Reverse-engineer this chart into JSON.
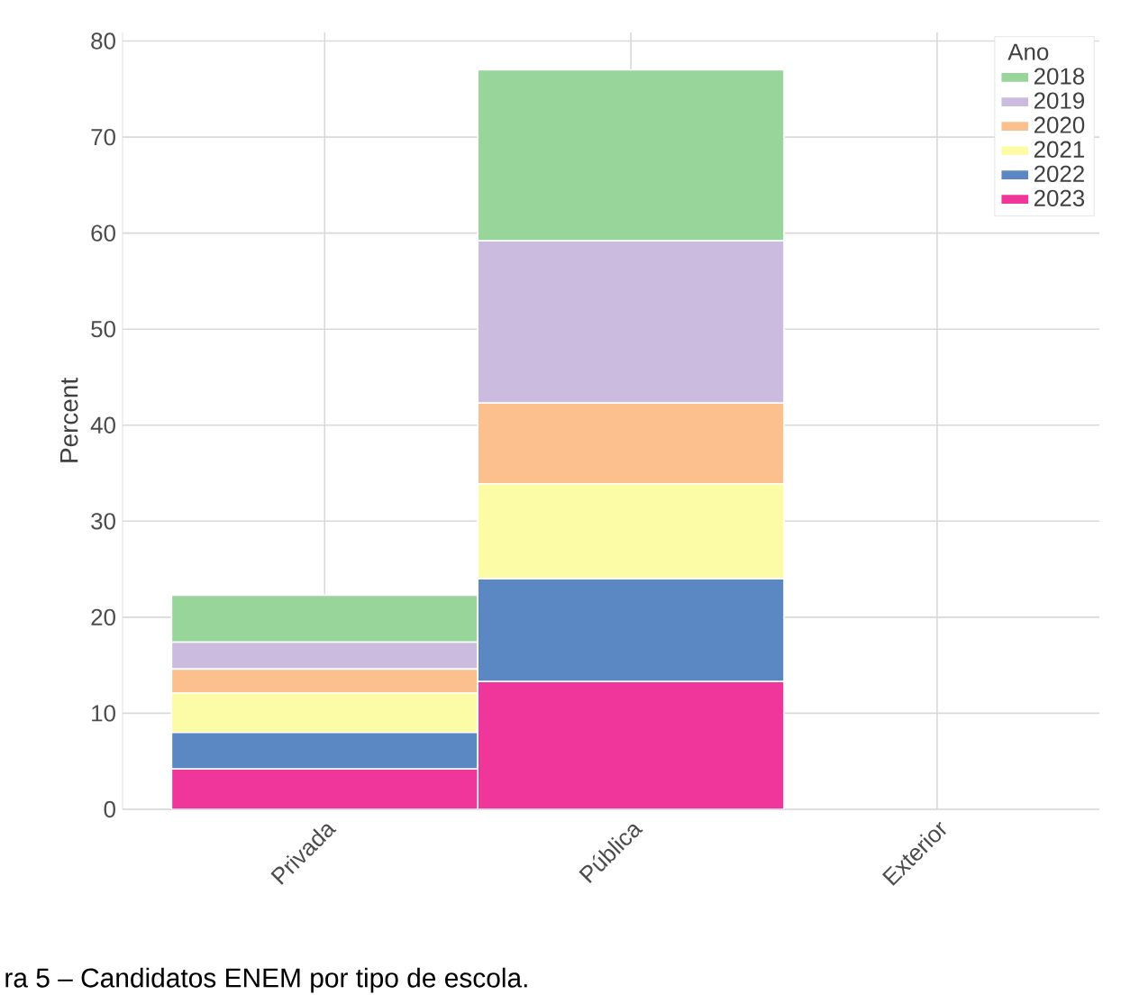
{
  "chart_data": {
    "type": "bar",
    "stacked": true,
    "ylabel": "Percent",
    "legend_title": "Ano",
    "legend": "top right",
    "grid": true,
    "categories": [
      "Privada",
      "Pública",
      "Exterior"
    ],
    "series": [
      {
        "name": "2023",
        "color": "#f0359b",
        "values": [
          4.2,
          13.3,
          0
        ]
      },
      {
        "name": "2022",
        "color": "#5b87c2",
        "values": [
          3.8,
          10.7,
          0
        ]
      },
      {
        "name": "2021",
        "color": "#fdfca6",
        "values": [
          4.1,
          9.9,
          0
        ]
      },
      {
        "name": "2020",
        "color": "#fbc08e",
        "values": [
          2.5,
          8.4,
          0
        ]
      },
      {
        "name": "2019",
        "color": "#cbbcdf",
        "values": [
          2.8,
          16.9,
          0
        ]
      },
      {
        "name": "2018",
        "color": "#98d59a",
        "values": [
          4.9,
          17.8,
          0
        ]
      }
    ],
    "ylim": [
      0,
      80.9
    ],
    "yticks": [
      0,
      10,
      20,
      30,
      40,
      50,
      60,
      70,
      80
    ],
    "annotations": [
      "ra 5 – Candidatos ENEM por tipo de escola."
    ]
  }
}
